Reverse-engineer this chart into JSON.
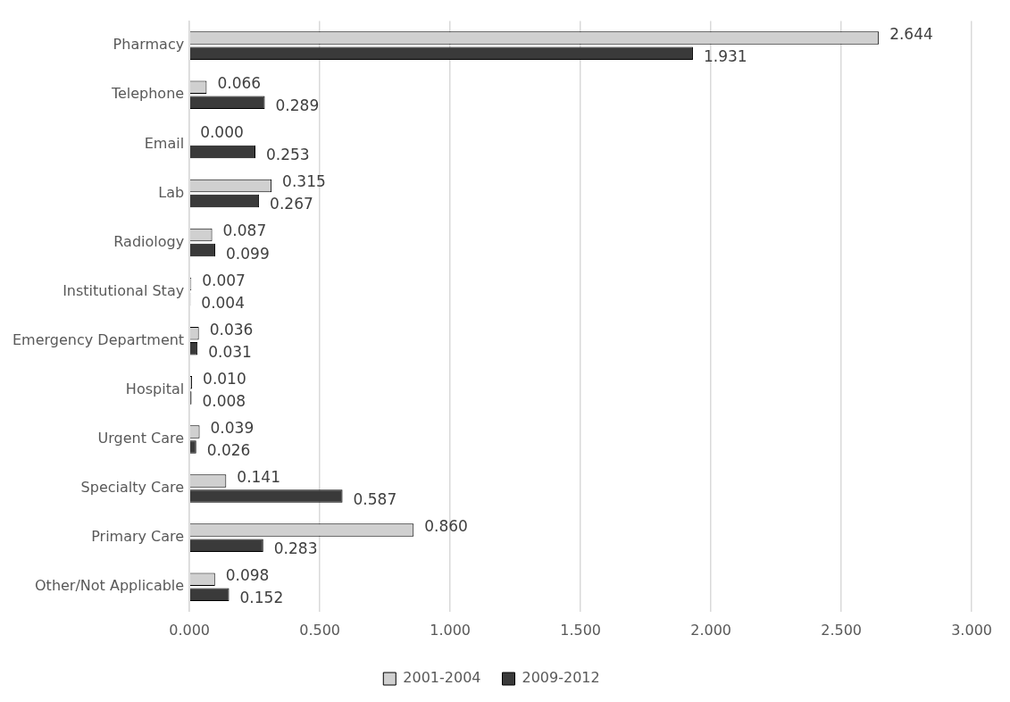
{
  "chart_data": {
    "type": "bar",
    "orientation": "horizontal",
    "categories": [
      "Pharmacy",
      "Telephone",
      "Email",
      "Lab",
      "Radiology",
      "Institutional Stay",
      "Emergency Department",
      "Hospital",
      "Urgent Care",
      "Specialty Care",
      "Primary Care",
      "Other/Not Applicable"
    ],
    "series": [
      {
        "name": "2001-2004",
        "color": "#d0d0d0",
        "values": [
          2.644,
          0.066,
          0,
          0.315,
          0.087,
          0.007,
          0.036,
          0.01,
          0.039,
          0.141,
          0.86,
          0.098
        ],
        "value_labels": [
          "2.644",
          "0.066",
          "0.000",
          "0.315",
          "0.087",
          "0.007",
          "0.036",
          "0.010",
          "0.039",
          "0.141",
          "0.860",
          "0.098"
        ]
      },
      {
        "name": "2009-2012",
        "color": "#3a3a3a",
        "values": [
          1.931,
          0.289,
          0.253,
          0.267,
          0.099,
          0.004,
          0.031,
          0.008,
          0.026,
          0.587,
          0.283,
          0.152
        ],
        "value_labels": [
          "1.931",
          "0.289",
          "0.253",
          "0.267",
          "0.099",
          "0.004",
          "0.031",
          "0.008",
          "0.026",
          "0.587",
          "0.283",
          "0.152"
        ]
      }
    ],
    "xlim": [
      0,
      3
    ],
    "xticks": [
      {
        "value": 0,
        "label": "0.000"
      },
      {
        "value": 0.5,
        "label": "0.500"
      },
      {
        "value": 1,
        "label": "1.000"
      },
      {
        "value": 1.5,
        "label": "1.500"
      },
      {
        "value": 2,
        "label": "2.000"
      },
      {
        "value": 2.5,
        "label": "2.500"
      },
      {
        "value": 3,
        "label": "3.000"
      }
    ],
    "grid": "x",
    "legend": "bottom"
  }
}
